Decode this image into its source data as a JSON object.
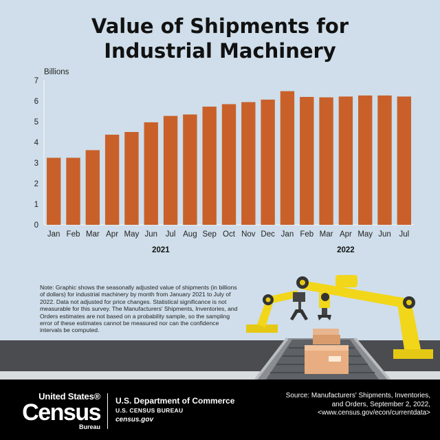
{
  "title_line1": "Value of Shipments for",
  "title_line2": "Industrial Machinery",
  "chart_data": {
    "type": "bar",
    "title": "Value of Shipments for Industrial Machinery",
    "ylabel": "Billions",
    "xlabel": "",
    "ylim": [
      0,
      7
    ],
    "yticks": [
      0,
      1,
      2,
      3,
      4,
      5,
      6,
      7
    ],
    "categories": [
      "Jan",
      "Feb",
      "Mar",
      "Apr",
      "May",
      "Jun",
      "Jul",
      "Aug",
      "Sep",
      "Oct",
      "Nov",
      "Dec",
      "Jan",
      "Feb",
      "Mar",
      "Apr",
      "May",
      "Jun",
      "Jul"
    ],
    "years": [
      {
        "label": "2021",
        "first_index": 0,
        "last_index": 11
      },
      {
        "label": "2022",
        "first_index": 12,
        "last_index": 18
      }
    ],
    "values": [
      3.25,
      3.25,
      3.62,
      4.37,
      4.5,
      4.97,
      5.28,
      5.35,
      5.73,
      5.85,
      5.95,
      6.07,
      6.48,
      6.2,
      6.18,
      6.22,
      6.27,
      6.27,
      6.22
    ],
    "grid": false,
    "bar_color": "#c9602a"
  },
  "note": "Note: Graphic shows the seasonally adjusted value of shipments (in billions of dollars) for industrial machinery by month from January 2021 to July of 2022. Data not adjusted for price changes. Statistical significance is not measurable for this survey. The Manufacturers' Shipments, Inventories, and Orders estimates are not based on a probability sample, so the sampling error of these estimates cannot be measured nor can the confidence intervals be computed.",
  "footer": {
    "logo_top": "United States®",
    "logo_mid": "Census",
    "logo_bot": "Bureau",
    "dept_line1": "U.S. Department of Commerce",
    "dept_line2": "U.S. CENSUS BUREAU",
    "dept_line3": "census.gov",
    "source_line1": "Source: Manufacturers' Shipments, Inventories,",
    "source_line2": "and Orders, September 2, 2022,",
    "source_line3": "<www.census.gov/econ/currentdata>"
  }
}
